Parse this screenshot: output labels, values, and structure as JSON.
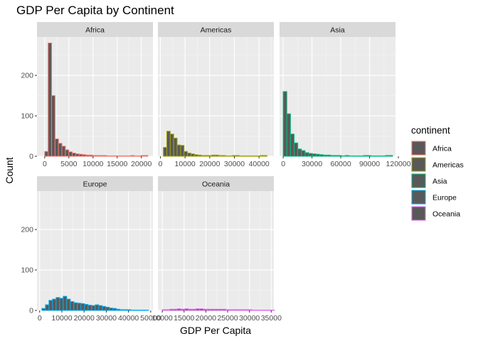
{
  "chart_data": {
    "type": "bar",
    "subtype": "faceted-histogram",
    "title": "GDP Per Capita by Continent",
    "xlabel": "GDP Per Capita",
    "ylabel": "Count",
    "y_ticks": [
      0,
      100,
      200
    ],
    "ylim": [
      0,
      295
    ],
    "grid": true,
    "legend": {
      "title": "continent",
      "position": "right",
      "entries": [
        "Africa",
        "Americas",
        "Asia",
        "Europe",
        "Oceania"
      ]
    },
    "facets": [
      {
        "name": "Africa",
        "color": "#F8766D",
        "xlim": [
          -1600,
          22400
        ],
        "x_ticks": [
          0,
          5000,
          10000,
          15000,
          20000
        ],
        "x_tick_labels": [
          "0",
          "5000",
          "10000",
          "15000",
          "20000"
        ],
        "bin_width": 712,
        "bins_start": 0,
        "counts": [
          12,
          280,
          150,
          43,
          32,
          25,
          16,
          11,
          8,
          6,
          5,
          4,
          3,
          3,
          2,
          2,
          2,
          2,
          1,
          1,
          1,
          1,
          1,
          1,
          1,
          2,
          1,
          1,
          2,
          2
        ]
      },
      {
        "name": "Americas",
        "color": "#A3A500",
        "xlim": [
          -1000,
          46000
        ],
        "x_ticks": [
          0,
          10000,
          20000,
          30000,
          40000
        ],
        "x_tick_labels": [
          "0",
          "10000",
          "20000",
          "30000",
          "40000"
        ],
        "bin_width": 1400,
        "bins_start": 1200,
        "counts": [
          22,
          62,
          55,
          45,
          28,
          27,
          12,
          8,
          6,
          4,
          3,
          2,
          2,
          2,
          3,
          3,
          2,
          2,
          1,
          1,
          2,
          2,
          1,
          1,
          1,
          1,
          1,
          1,
          2,
          2
        ]
      },
      {
        "name": "Asia",
        "color": "#00BF7D",
        "xlim": [
          -3800,
          117000
        ],
        "x_ticks": [
          0,
          30000,
          60000,
          90000,
          120000
        ],
        "x_tick_labels": [
          "0",
          "30000",
          "60000",
          "90000",
          "120000"
        ],
        "bin_width": 3800,
        "bins_start": 0,
        "counts": [
          160,
          105,
          55,
          33,
          18,
          14,
          9,
          7,
          6,
          5,
          4,
          3,
          3,
          2,
          2,
          2,
          1,
          2,
          1,
          1,
          1,
          1,
          2,
          2,
          1,
          1,
          1,
          1,
          2,
          2
        ]
      },
      {
        "name": "Europe",
        "color": "#00B0F6",
        "xlim": [
          -1200,
          51000
        ],
        "x_ticks": [
          0,
          10000,
          20000,
          30000,
          40000,
          50000
        ],
        "x_tick_labels": [
          "0",
          "10000",
          "20000",
          "30000",
          "40000",
          "50000"
        ],
        "bin_width": 1600,
        "bins_start": 1000,
        "counts": [
          5,
          14,
          25,
          28,
          32,
          30,
          35,
          28,
          22,
          19,
          18,
          17,
          15,
          13,
          12,
          14,
          12,
          10,
          8,
          6,
          5,
          3,
          2,
          2,
          2,
          1,
          1,
          1,
          1,
          1
        ]
      },
      {
        "name": "Oceania",
        "color": "#E76BF3",
        "xlim": [
          9000,
          35600
        ],
        "x_ticks": [
          10000,
          15000,
          20000,
          25000,
          30000,
          35000
        ],
        "x_tick_labels": [
          "10000",
          "15000",
          "20000",
          "25000",
          "30000",
          "35000"
        ],
        "bin_width": 857,
        "bins_start": 10000,
        "counts": [
          2,
          2,
          3,
          3,
          4,
          3,
          4,
          3,
          3,
          4,
          4,
          3,
          3,
          3,
          3,
          3,
          3,
          2,
          2,
          2,
          2,
          2,
          2,
          2,
          1,
          1,
          1,
          1,
          1,
          1
        ]
      }
    ]
  }
}
